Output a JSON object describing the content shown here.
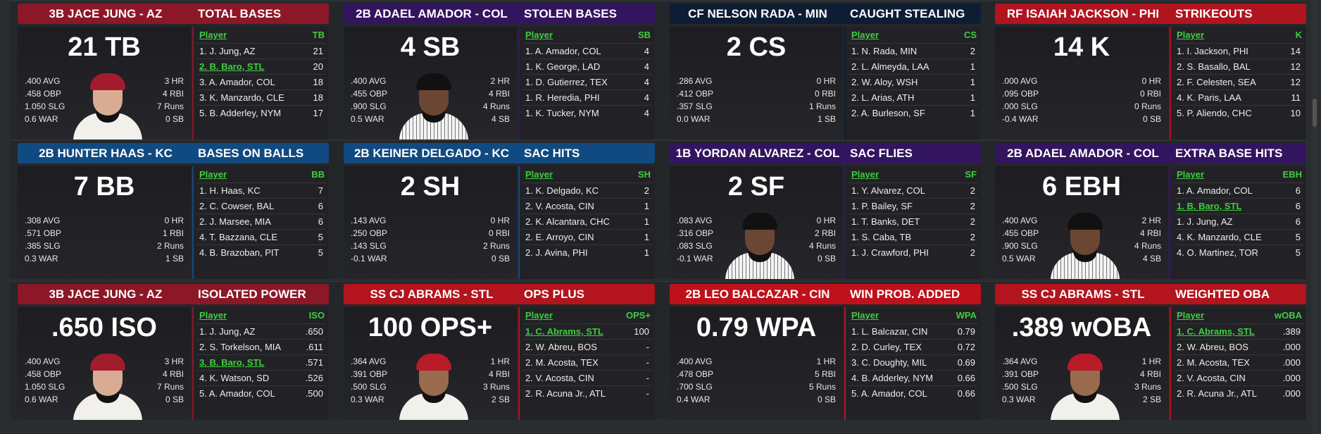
{
  "cards": [
    {
      "player": "3B JACE JUNG - AZ",
      "category": "TOTAL BASES",
      "value": "21 TB",
      "color": "#8c1727",
      "photo": "az",
      "stats_left": [
        ".400 AVG",
        ".458 OBP",
        "1.050 SLG",
        "0.6 WAR"
      ],
      "stats_right": [
        "3 HR",
        "4 RBI",
        "7 Runs",
        "0 SB"
      ],
      "col": "TB",
      "rows": [
        {
          "name": "1. J. Jung, AZ",
          "value": "21"
        },
        {
          "name": "2. B. Baro, STL",
          "value": "20",
          "highlight": true
        },
        {
          "name": "3. A. Amador, COL",
          "value": "18"
        },
        {
          "name": "3. K. Manzardo, CLE",
          "value": "18"
        },
        {
          "name": "5. B. Adderley, NYM",
          "value": "17"
        }
      ]
    },
    {
      "player": "2B ADAEL AMADOR - COL",
      "category": "STOLEN BASES",
      "value": "4 SB",
      "color": "#33155f",
      "photo": "col",
      "stats_left": [
        ".400 AVG",
        ".455 OBP",
        ".900 SLG",
        "0.5 WAR"
      ],
      "stats_right": [
        "2 HR",
        "4 RBI",
        "4 Runs",
        "4 SB"
      ],
      "col": "SB",
      "rows": [
        {
          "name": "1. A. Amador, COL",
          "value": "4"
        },
        {
          "name": "1. K. George, LAD",
          "value": "4"
        },
        {
          "name": "1. D. Gutierrez, TEX",
          "value": "4"
        },
        {
          "name": "1. R. Heredia, PHI",
          "value": "4"
        },
        {
          "name": "1. K. Tucker, NYM",
          "value": "4"
        }
      ]
    },
    {
      "player": "CF NELSON RADA - MIN",
      "category": "CAUGHT STEALING",
      "value": "2 CS",
      "color": "#0d1d33",
      "photo": null,
      "stats_left": [
        ".286 AVG",
        ".412 OBP",
        ".357 SLG",
        "0.0 WAR"
      ],
      "stats_right": [
        "0 HR",
        "0 RBI",
        "1 Runs",
        "1 SB"
      ],
      "col": "CS",
      "rows": [
        {
          "name": "1. N. Rada, MIN",
          "value": "2"
        },
        {
          "name": "2. L. Almeyda, LAA",
          "value": "1"
        },
        {
          "name": "2. W. Aloy, WSH",
          "value": "1"
        },
        {
          "name": "2. L. Arias, ATH",
          "value": "1"
        },
        {
          "name": "2. A. Burleson, SF",
          "value": "1"
        }
      ]
    },
    {
      "player": "RF ISAIAH JACKSON - PHI",
      "category": "STRIKEOUTS",
      "value": "14 K",
      "color": "#b0141f",
      "photo": null,
      "stats_left": [
        ".000 AVG",
        ".095 OBP",
        ".000 SLG",
        "-0.4 WAR"
      ],
      "stats_right": [
        "0 HR",
        "0 RBI",
        "0 Runs",
        "0 SB"
      ],
      "col": "K",
      "rows": [
        {
          "name": "1. I. Jackson, PHI",
          "value": "14"
        },
        {
          "name": "2. S. Basallo, BAL",
          "value": "12"
        },
        {
          "name": "2. F. Celesten, SEA",
          "value": "12"
        },
        {
          "name": "4. K. Paris, LAA",
          "value": "11"
        },
        {
          "name": "5. P. Aliendo, CHC",
          "value": "10"
        }
      ]
    },
    {
      "player": "2B HUNTER HAAS - KC",
      "category": "BASES ON BALLS",
      "value": "7 BB",
      "color": "#114a80",
      "photo": null,
      "stats_left": [
        ".308 AVG",
        ".571 OBP",
        ".385 SLG",
        "0.3 WAR"
      ],
      "stats_right": [
        "0 HR",
        "1 RBI",
        "2 Runs",
        "1 SB"
      ],
      "col": "BB",
      "rows": [
        {
          "name": "1. H. Haas, KC",
          "value": "7"
        },
        {
          "name": "2. C. Cowser, BAL",
          "value": "6"
        },
        {
          "name": "2. J. Marsee, MIA",
          "value": "6"
        },
        {
          "name": "4. T. Bazzana, CLE",
          "value": "5"
        },
        {
          "name": "4. B. Brazoban, PIT",
          "value": "5"
        }
      ]
    },
    {
      "player": "2B KEINER DELGADO - KC",
      "category": "SAC HITS",
      "value": "2 SH",
      "color": "#114a80",
      "photo": null,
      "stats_left": [
        ".143 AVG",
        ".250 OBP",
        ".143 SLG",
        "-0.1 WAR"
      ],
      "stats_right": [
        "0 HR",
        "0 RBI",
        "2 Runs",
        "0 SB"
      ],
      "col": "SH",
      "rows": [
        {
          "name": "1. K. Delgado, KC",
          "value": "2"
        },
        {
          "name": "2. V. Acosta, CIN",
          "value": "1"
        },
        {
          "name": "2. K. Alcantara, CHC",
          "value": "1"
        },
        {
          "name": "2. E. Arroyo, CIN",
          "value": "1"
        },
        {
          "name": "2. J. Avina, PHI",
          "value": "1"
        }
      ]
    },
    {
      "player": "1B YORDAN ALVAREZ - COL",
      "category": "SAC FLIES",
      "value": "2 SF",
      "color": "#33155f",
      "photo": "col",
      "stats_left": [
        ".083 AVG",
        ".316 OBP",
        ".083 SLG",
        "-0.1 WAR"
      ],
      "stats_right": [
        "0 HR",
        "2 RBI",
        "4 Runs",
        "0 SB"
      ],
      "col": "SF",
      "rows": [
        {
          "name": "1. Y. Alvarez, COL",
          "value": "2"
        },
        {
          "name": "1. P. Bailey, SF",
          "value": "2"
        },
        {
          "name": "1. T. Banks, DET",
          "value": "2"
        },
        {
          "name": "1. S. Caba, TB",
          "value": "2"
        },
        {
          "name": "1. J. Crawford, PHI",
          "value": "2"
        }
      ]
    },
    {
      "player": "2B ADAEL AMADOR - COL",
      "category": "EXTRA BASE HITS",
      "value": "6 EBH",
      "color": "#33155f",
      "photo": "col",
      "stats_left": [
        ".400 AVG",
        ".455 OBP",
        ".900 SLG",
        "0.5 WAR"
      ],
      "stats_right": [
        "2 HR",
        "4 RBI",
        "4 Runs",
        "4 SB"
      ],
      "col": "EBH",
      "rows": [
        {
          "name": "1. A. Amador, COL",
          "value": "6"
        },
        {
          "name": "1. B. Baro, STL",
          "value": "6",
          "highlight": true
        },
        {
          "name": "1. J. Jung, AZ",
          "value": "6"
        },
        {
          "name": "4. K. Manzardo, CLE",
          "value": "5"
        },
        {
          "name": "4. O. Martinez, TOR",
          "value": "5"
        }
      ]
    },
    {
      "player": "3B JACE JUNG - AZ",
      "category": "ISOLATED POWER",
      "value": ".650 ISO",
      "color": "#8c1727",
      "photo": "az",
      "stats_left": [
        ".400 AVG",
        ".458 OBP",
        "1.050 SLG",
        "0.6 WAR"
      ],
      "stats_right": [
        "3 HR",
        "4 RBI",
        "7 Runs",
        "0 SB"
      ],
      "col": "ISO",
      "rows": [
        {
          "name": "1. J. Jung, AZ",
          "value": ".650"
        },
        {
          "name": "2. S. Torkelson, MIA",
          "value": ".611"
        },
        {
          "name": "3. B. Baro, STL",
          "value": ".571",
          "highlight": true
        },
        {
          "name": "4. K. Watson, SD",
          "value": ".526"
        },
        {
          "name": "5. A. Amador, COL",
          "value": ".500"
        }
      ]
    },
    {
      "player": "SS CJ ABRAMS - STL",
      "category": "OPS PLUS",
      "value": "100 OPS+",
      "color": "#b3141d",
      "photo": "stl",
      "stats_left": [
        ".364 AVG",
        ".391 OBP",
        ".500 SLG",
        "0.3 WAR"
      ],
      "stats_right": [
        "1 HR",
        "4 RBI",
        "3 Runs",
        "2 SB"
      ],
      "col": "OPS+",
      "rows": [
        {
          "name": "1. C. Abrams, STL",
          "value": "100",
          "highlight": true
        },
        {
          "name": "2. W. Abreu, BOS",
          "value": "-"
        },
        {
          "name": "2. M. Acosta, TEX",
          "value": "-"
        },
        {
          "name": "2. V. Acosta, CIN",
          "value": "-"
        },
        {
          "name": "2. R. Acuna Jr., ATL",
          "value": "-"
        }
      ]
    },
    {
      "player": "2B LEO BALCAZAR - CIN",
      "category": "WIN PROB. ADDED",
      "value": "0.79 WPA",
      "color": "#bf111b",
      "photo": null,
      "stats_left": [
        ".400 AVG",
        ".478 OBP",
        ".700 SLG",
        "0.4 WAR"
      ],
      "stats_right": [
        "1 HR",
        "5 RBI",
        "5 Runs",
        "0 SB"
      ],
      "col": "WPA",
      "rows": [
        {
          "name": "1. L. Balcazar, CIN",
          "value": "0.79"
        },
        {
          "name": "2. D. Curley, TEX",
          "value": "0.72"
        },
        {
          "name": "3. C. Doughty, MIL",
          "value": "0.69"
        },
        {
          "name": "4. B. Adderley, NYM",
          "value": "0.66"
        },
        {
          "name": "5. A. Amador, COL",
          "value": "0.66"
        }
      ]
    },
    {
      "player": "SS CJ ABRAMS - STL",
      "category": "WEIGHTED OBA",
      "value": ".389 wOBA",
      "color": "#b3141d",
      "photo": "stl",
      "stats_left": [
        ".364 AVG",
        ".391 OBP",
        ".500 SLG",
        "0.3 WAR"
      ],
      "stats_right": [
        "1 HR",
        "4 RBI",
        "3 Runs",
        "2 SB"
      ],
      "col": "wOBA",
      "rows": [
        {
          "name": "1. C. Abrams, STL",
          "value": ".389",
          "highlight": true
        },
        {
          "name": "2. W. Abreu, BOS",
          "value": ".000"
        },
        {
          "name": "2. M. Acosta, TEX",
          "value": ".000"
        },
        {
          "name": "2. V. Acosta, CIN",
          "value": ".000"
        },
        {
          "name": "2. R. Acuna Jr., ATL",
          "value": ".000"
        }
      ]
    }
  ],
  "table_header": "Player",
  "photo_styles": {
    "az": {
      "cap": "#a31c2e",
      "jersey": "plain"
    },
    "col": {
      "cap": "#111111",
      "jersey": "pin"
    },
    "stl": {
      "cap": "#b81a26",
      "jersey": "plain"
    }
  }
}
